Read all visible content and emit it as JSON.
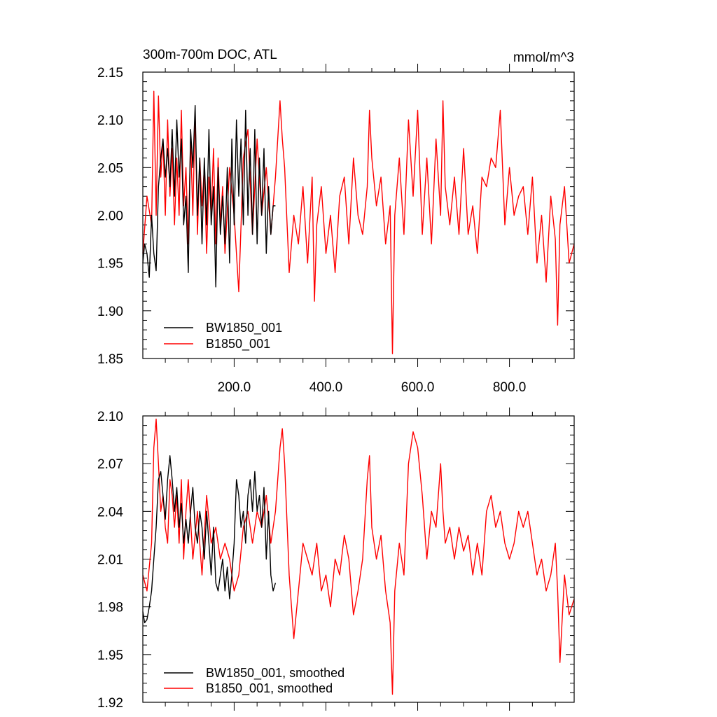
{
  "chart_data": [
    {
      "type": "line",
      "title": "300m-700m DOC, ATL",
      "units": "mmol/m^3",
      "xlim": [
        1,
        941
      ],
      "ylim": [
        1.85,
        2.15
      ],
      "yticks": [
        1.85,
        1.9,
        1.95,
        2.0,
        2.05,
        2.1,
        2.15
      ],
      "ytick_labels": [
        "1.85",
        "1.90",
        "1.95",
        "2.00",
        "2.05",
        "2.10",
        "2.15"
      ],
      "xticks": [
        200,
        400,
        600,
        800
      ],
      "xtick_labels": [
        "200.0",
        "400.0",
        "600.0",
        "800.0"
      ],
      "legend_position": "bottom-left",
      "series": [
        {
          "name": "BW1850_001",
          "color": "#000000",
          "x": [
            1,
            5,
            10,
            15,
            20,
            25,
            30,
            35,
            40,
            45,
            50,
            55,
            60,
            65,
            70,
            75,
            80,
            85,
            90,
            95,
            100,
            105,
            110,
            115,
            120,
            125,
            130,
            135,
            140,
            145,
            150,
            155,
            160,
            165,
            170,
            175,
            180,
            185,
            190,
            195,
            200,
            205,
            210,
            215,
            220,
            225,
            230,
            235,
            240,
            245,
            250,
            255,
            260,
            265,
            270,
            275,
            280,
            285,
            290
          ],
          "values": [
            1.95,
            1.97,
            1.96,
            1.935,
            2.0,
            1.96,
            1.942,
            2.03,
            2.06,
            2.08,
            2.04,
            2.07,
            2.03,
            2.09,
            2.02,
            2.1,
            2.04,
            2.08,
            1.99,
            2.02,
            1.94,
            2.09,
            2.05,
            2.115,
            2.0,
            2.06,
            1.97,
            2.06,
            1.99,
            2.09,
            1.99,
            2.03,
            1.925,
            2.05,
            1.98,
            2.02,
            1.97,
            2.05,
            1.95,
            2.08,
            1.99,
            2.1,
            2.02,
            2.08,
            1.99,
            2.11,
            2.0,
            2.07,
            1.98,
            2.09,
            1.97,
            2.06,
            2.0,
            2.07,
            1.96,
            2.03,
            1.98,
            2.01,
            2.01
          ]
        },
        {
          "name": "B1850_001",
          "color": "#ff0000",
          "x": [
            1,
            10,
            20,
            25,
            30,
            35,
            40,
            45,
            50,
            55,
            60,
            65,
            70,
            75,
            80,
            85,
            90,
            95,
            100,
            105,
            110,
            115,
            120,
            125,
            130,
            135,
            140,
            145,
            150,
            155,
            160,
            165,
            170,
            175,
            180,
            190,
            200,
            210,
            220,
            230,
            240,
            250,
            260,
            270,
            280,
            290,
            300,
            305,
            310,
            320,
            330,
            340,
            350,
            360,
            370,
            375,
            380,
            390,
            400,
            410,
            420,
            430,
            440,
            450,
            460,
            470,
            480,
            490,
            495,
            500,
            510,
            520,
            530,
            540,
            545,
            550,
            560,
            570,
            580,
            590,
            600,
            610,
            620,
            630,
            640,
            650,
            655,
            660,
            670,
            680,
            690,
            700,
            710,
            720,
            730,
            740,
            750,
            760,
            770,
            780,
            790,
            800,
            810,
            820,
            830,
            840,
            850,
            860,
            870,
            880,
            890,
            900,
            905,
            910,
            920,
            930,
            941
          ],
          "values": [
            1.96,
            2.02,
            1.99,
            2.13,
            2.0,
            2.125,
            2.04,
            2.08,
            2.0,
            2.1,
            2.02,
            2.07,
            1.99,
            2.06,
            2.0,
            2.11,
            2.01,
            2.05,
            1.97,
            2.08,
            2.0,
            2.11,
            1.98,
            2.06,
            2.01,
            2.05,
            1.96,
            2.04,
            2.0,
            2.07,
            1.97,
            2.06,
            1.99,
            2.03,
            1.96,
            2.05,
            2.0,
            1.92,
            2.06,
            2.09,
            1.98,
            2.08,
            2.0,
            2.05,
            1.98,
            2.04,
            2.12,
            2.08,
            2.05,
            1.94,
            2.0,
            1.97,
            2.03,
            1.95,
            2.04,
            1.91,
            1.99,
            2.03,
            1.96,
            2.0,
            1.94,
            2.02,
            2.04,
            1.97,
            2.06,
            2.0,
            1.98,
            2.03,
            2.11,
            2.06,
            2.01,
            2.04,
            1.97,
            2.01,
            1.855,
            2.0,
            2.06,
            1.98,
            2.1,
            2.02,
            2.11,
            1.98,
            2.06,
            1.97,
            2.08,
            2.0,
            2.12,
            2.03,
            1.99,
            2.04,
            1.98,
            2.07,
            1.98,
            2.01,
            1.96,
            2.04,
            2.03,
            2.06,
            2.05,
            2.11,
            1.99,
            2.05,
            2.0,
            2.02,
            2.03,
            1.98,
            2.04,
            1.95,
            2.0,
            1.93,
            2.02,
            1.975,
            1.885,
            1.99,
            2.03,
            1.95,
            1.97
          ]
        }
      ]
    },
    {
      "type": "line",
      "xlim": [
        1,
        941
      ],
      "ylim": [
        1.92,
        2.1
      ],
      "yticks": [
        1.92,
        1.95,
        1.98,
        2.01,
        2.04,
        2.07,
        2.1
      ],
      "ytick_labels": [
        "1.92",
        "1.95",
        "1.98",
        "2.01",
        "2.04",
        "2.07",
        "2.10"
      ],
      "xticks": [
        200,
        400,
        600,
        800
      ],
      "legend_position": "bottom-left",
      "series": [
        {
          "name": "BW1850_001, smoothed",
          "color": "#000000",
          "x": [
            1,
            5,
            10,
            15,
            20,
            25,
            30,
            35,
            40,
            45,
            50,
            55,
            60,
            65,
            70,
            75,
            80,
            85,
            90,
            95,
            100,
            105,
            110,
            115,
            120,
            125,
            130,
            135,
            140,
            145,
            150,
            155,
            160,
            165,
            170,
            175,
            180,
            185,
            190,
            195,
            200,
            205,
            210,
            215,
            220,
            225,
            230,
            235,
            240,
            245,
            250,
            255,
            260,
            265,
            270,
            275,
            280,
            285,
            290
          ],
          "values": [
            1.977,
            1.97,
            1.972,
            1.98,
            1.99,
            2.01,
            2.03,
            2.06,
            2.065,
            2.05,
            2.035,
            2.06,
            2.075,
            2.06,
            2.04,
            2.055,
            2.03,
            2.045,
            2.02,
            2.035,
            2.02,
            2.04,
            2.055,
            2.03,
            2.02,
            2.04,
            2.03,
            2.01,
            2.04,
            2.02,
            2.0,
            2.03,
            1.995,
            1.99,
            2.0,
            2.01,
            1.99,
            2.005,
            1.985,
            2.0,
            2.02,
            2.06,
            2.05,
            2.03,
            2.04,
            2.02,
            2.05,
            2.06,
            2.04,
            2.065,
            2.04,
            2.05,
            2.03,
            2.055,
            2.01,
            2.04,
            2.0,
            1.99,
            1.995
          ]
        },
        {
          "name": "B1850_001, smoothed",
          "color": "#ff0000",
          "x": [
            1,
            10,
            20,
            25,
            30,
            35,
            40,
            45,
            50,
            55,
            60,
            65,
            70,
            75,
            80,
            85,
            90,
            95,
            100,
            110,
            120,
            130,
            140,
            150,
            160,
            170,
            180,
            190,
            200,
            210,
            220,
            230,
            240,
            250,
            260,
            270,
            280,
            290,
            300,
            305,
            310,
            320,
            330,
            340,
            350,
            360,
            370,
            380,
            390,
            400,
            410,
            420,
            430,
            440,
            450,
            460,
            470,
            480,
            490,
            495,
            500,
            510,
            520,
            530,
            540,
            545,
            550,
            560,
            570,
            580,
            590,
            600,
            610,
            620,
            630,
            640,
            650,
            655,
            660,
            670,
            680,
            690,
            700,
            710,
            720,
            730,
            740,
            750,
            760,
            770,
            780,
            790,
            800,
            810,
            820,
            830,
            840,
            850,
            860,
            870,
            880,
            890,
            900,
            905,
            910,
            920,
            930,
            941
          ],
          "values": [
            2.0,
            1.99,
            2.02,
            2.08,
            2.098,
            2.07,
            2.04,
            2.05,
            2.03,
            2.02,
            2.06,
            2.05,
            2.03,
            2.05,
            2.02,
            2.06,
            2.01,
            2.04,
            2.06,
            2.01,
            2.04,
            2.0,
            2.05,
            2.02,
            2.03,
            2.01,
            2.02,
            2.01,
            1.99,
            2.0,
            2.03,
            2.04,
            2.02,
            2.04,
            2.03,
            2.05,
            2.02,
            2.04,
            2.08,
            2.092,
            2.07,
            2.0,
            1.96,
            1.99,
            2.02,
            2.01,
            2.0,
            2.02,
            1.99,
            2.0,
            1.98,
            2.01,
            2.0,
            2.025,
            2.01,
            1.975,
            1.99,
            2.01,
            2.06,
            2.075,
            2.03,
            2.01,
            2.025,
            1.99,
            1.97,
            1.925,
            1.99,
            2.02,
            2.0,
            2.07,
            2.09,
            2.08,
            2.05,
            2.01,
            2.04,
            2.03,
            2.07,
            2.04,
            2.02,
            2.03,
            2.01,
            2.03,
            2.015,
            2.025,
            2.0,
            2.02,
            2.0,
            2.04,
            2.05,
            2.03,
            2.04,
            2.02,
            2.01,
            2.02,
            2.04,
            2.03,
            2.04,
            2.02,
            2.0,
            2.01,
            1.99,
            2.0,
            2.02,
            1.99,
            1.945,
            2.0,
            1.975,
            1.985
          ]
        }
      ]
    }
  ]
}
